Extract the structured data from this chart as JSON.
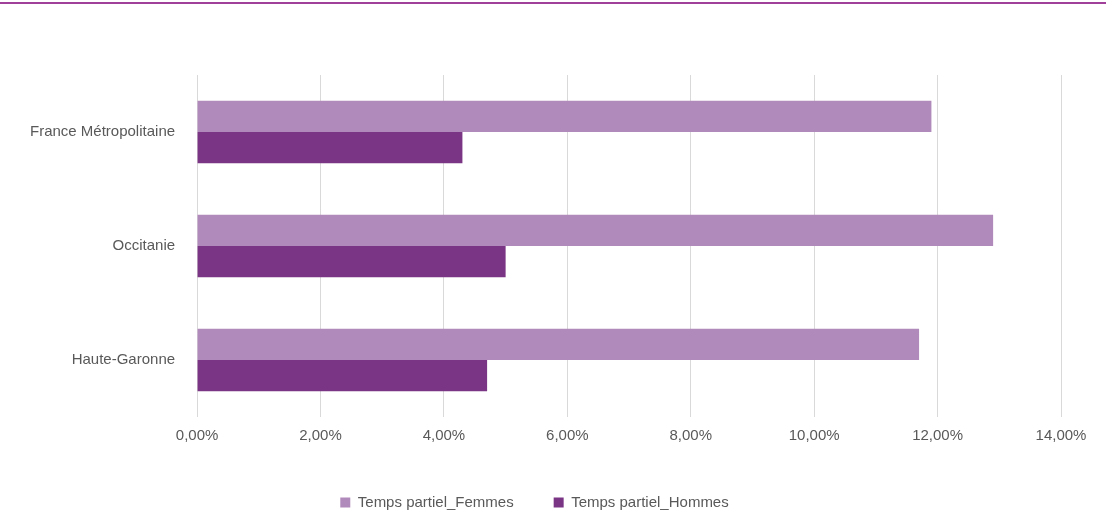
{
  "chart_data": {
    "type": "bar",
    "orientation": "horizontal",
    "categories": [
      "France Métropolitaine",
      "Occitanie",
      "Haute-Garonne"
    ],
    "series": [
      {
        "name": "Temps partiel_Femmes",
        "color": "#b08abb",
        "values": [
          11.9,
          12.9,
          11.7
        ]
      },
      {
        "name": "Temps partiel_Hommes",
        "color": "#7b3585",
        "values": [
          4.3,
          5.0,
          4.7
        ]
      }
    ],
    "xlim": [
      0,
      14
    ],
    "xticks": [
      {
        "value": 0,
        "label": "0,00%"
      },
      {
        "value": 2,
        "label": "2,00%"
      },
      {
        "value": 4,
        "label": "4,00%"
      },
      {
        "value": 6,
        "label": "6,00%"
      },
      {
        "value": 8,
        "label": "8,00%"
      },
      {
        "value": 10,
        "label": "10,00%"
      },
      {
        "value": 12,
        "label": "12,00%"
      },
      {
        "value": 14,
        "label": "14,00%"
      }
    ],
    "grid": "x",
    "legend": "bottom"
  }
}
